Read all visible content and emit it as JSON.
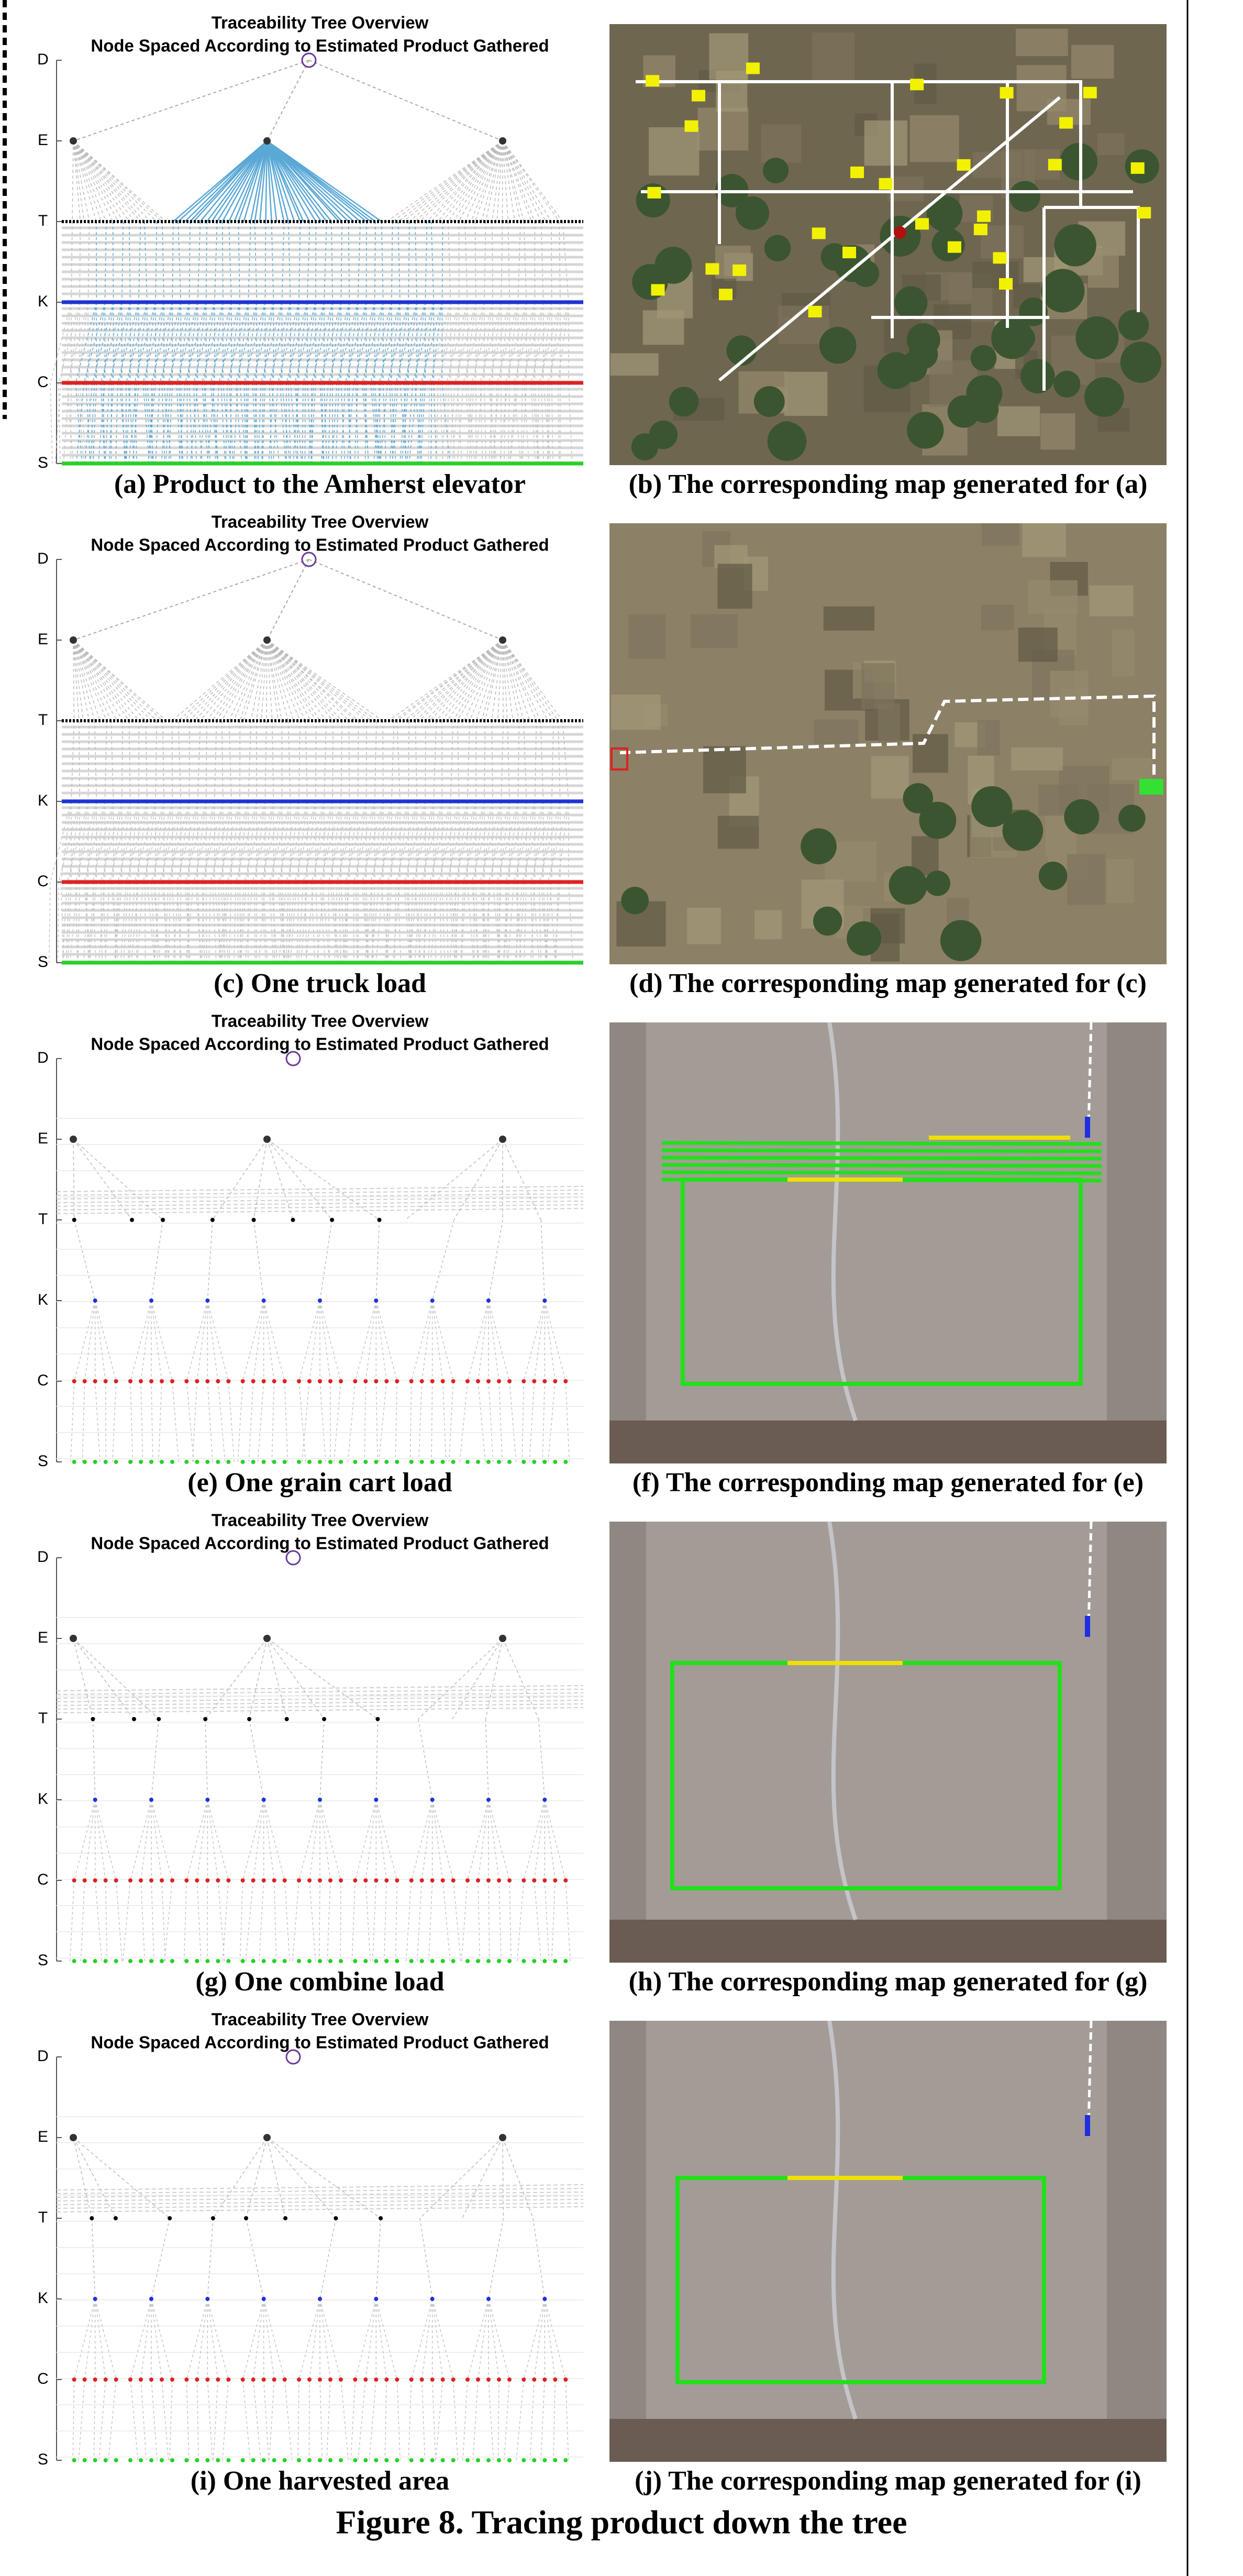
{
  "rows": [
    {
      "tree": {
        "title": "Traceability Tree Overview",
        "subtitle": "Node Spaced According to Estimated Product Gathered",
        "levels": [
          "D",
          "E",
          "T",
          "K",
          "C",
          "S"
        ]
      },
      "tree_caption": "(a) Product to the Amherst elevator",
      "map_caption": "(b) The corresponding map generated for (a)"
    },
    {
      "tree": {
        "title": "Traceability Tree Overview",
        "subtitle": "Node Spaced According to Estimated Product Gathered",
        "levels": [
          "D",
          "E",
          "T",
          "K",
          "C",
          "S"
        ]
      },
      "tree_caption": "(c) One truck load",
      "map_caption": "(d) The corresponding map generated for (c)"
    },
    {
      "tree": {
        "title": "Traceability Tree Overview",
        "subtitle": "Node Spaced According to Estimated Product Gathered",
        "levels": [
          "D",
          "E",
          "T",
          "K",
          "C",
          "S"
        ]
      },
      "tree_caption": "(e) One grain cart load",
      "map_caption": "(f) The corresponding map generated for (e)"
    },
    {
      "tree": {
        "title": "Traceability Tree Overview",
        "subtitle": "Node Spaced According to Estimated Product Gathered",
        "levels": [
          "D",
          "E",
          "T",
          "K",
          "C",
          "S"
        ]
      },
      "tree_caption": "(g) One combine load",
      "map_caption": "(h) The corresponding map generated for (g)"
    },
    {
      "tree": {
        "title": "Traceability Tree Overview",
        "subtitle": "Node Spaced According to Estimated Product Gathered",
        "levels": [
          "D",
          "E",
          "T",
          "K",
          "C",
          "S"
        ]
      },
      "tree_caption": "(i) One harvested area",
      "map_caption": "(j) The corresponding map generated for (i)"
    }
  ],
  "figure_caption": "Figure 8. Tracing product down the tree"
}
